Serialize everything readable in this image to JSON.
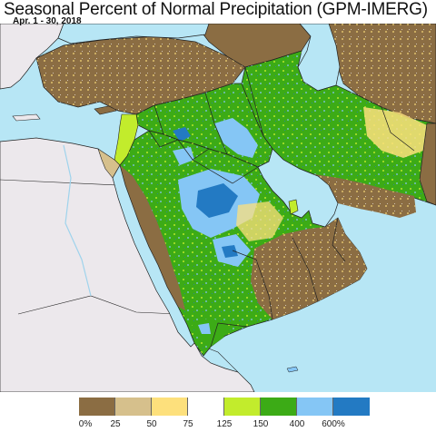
{
  "title": "Seasonal Percent of Normal Precipitation (GPM-IMERG)",
  "subtitle": "Apr. 1 - 30, 2018",
  "colors": {
    "water": "#b7e6f5",
    "outside": "#ece8ec",
    "border": "#222222"
  },
  "legend": {
    "colors": [
      "#8b6d43",
      "#d6c08c",
      "#fde07c",
      "#ffffff",
      "#c2ec2c",
      "#3cab16",
      "#85c6f5",
      "#237ac3"
    ],
    "labels": [
      "0%",
      "25",
      "50",
      "75",
      "125",
      "150",
      "400",
      "600%"
    ]
  }
}
